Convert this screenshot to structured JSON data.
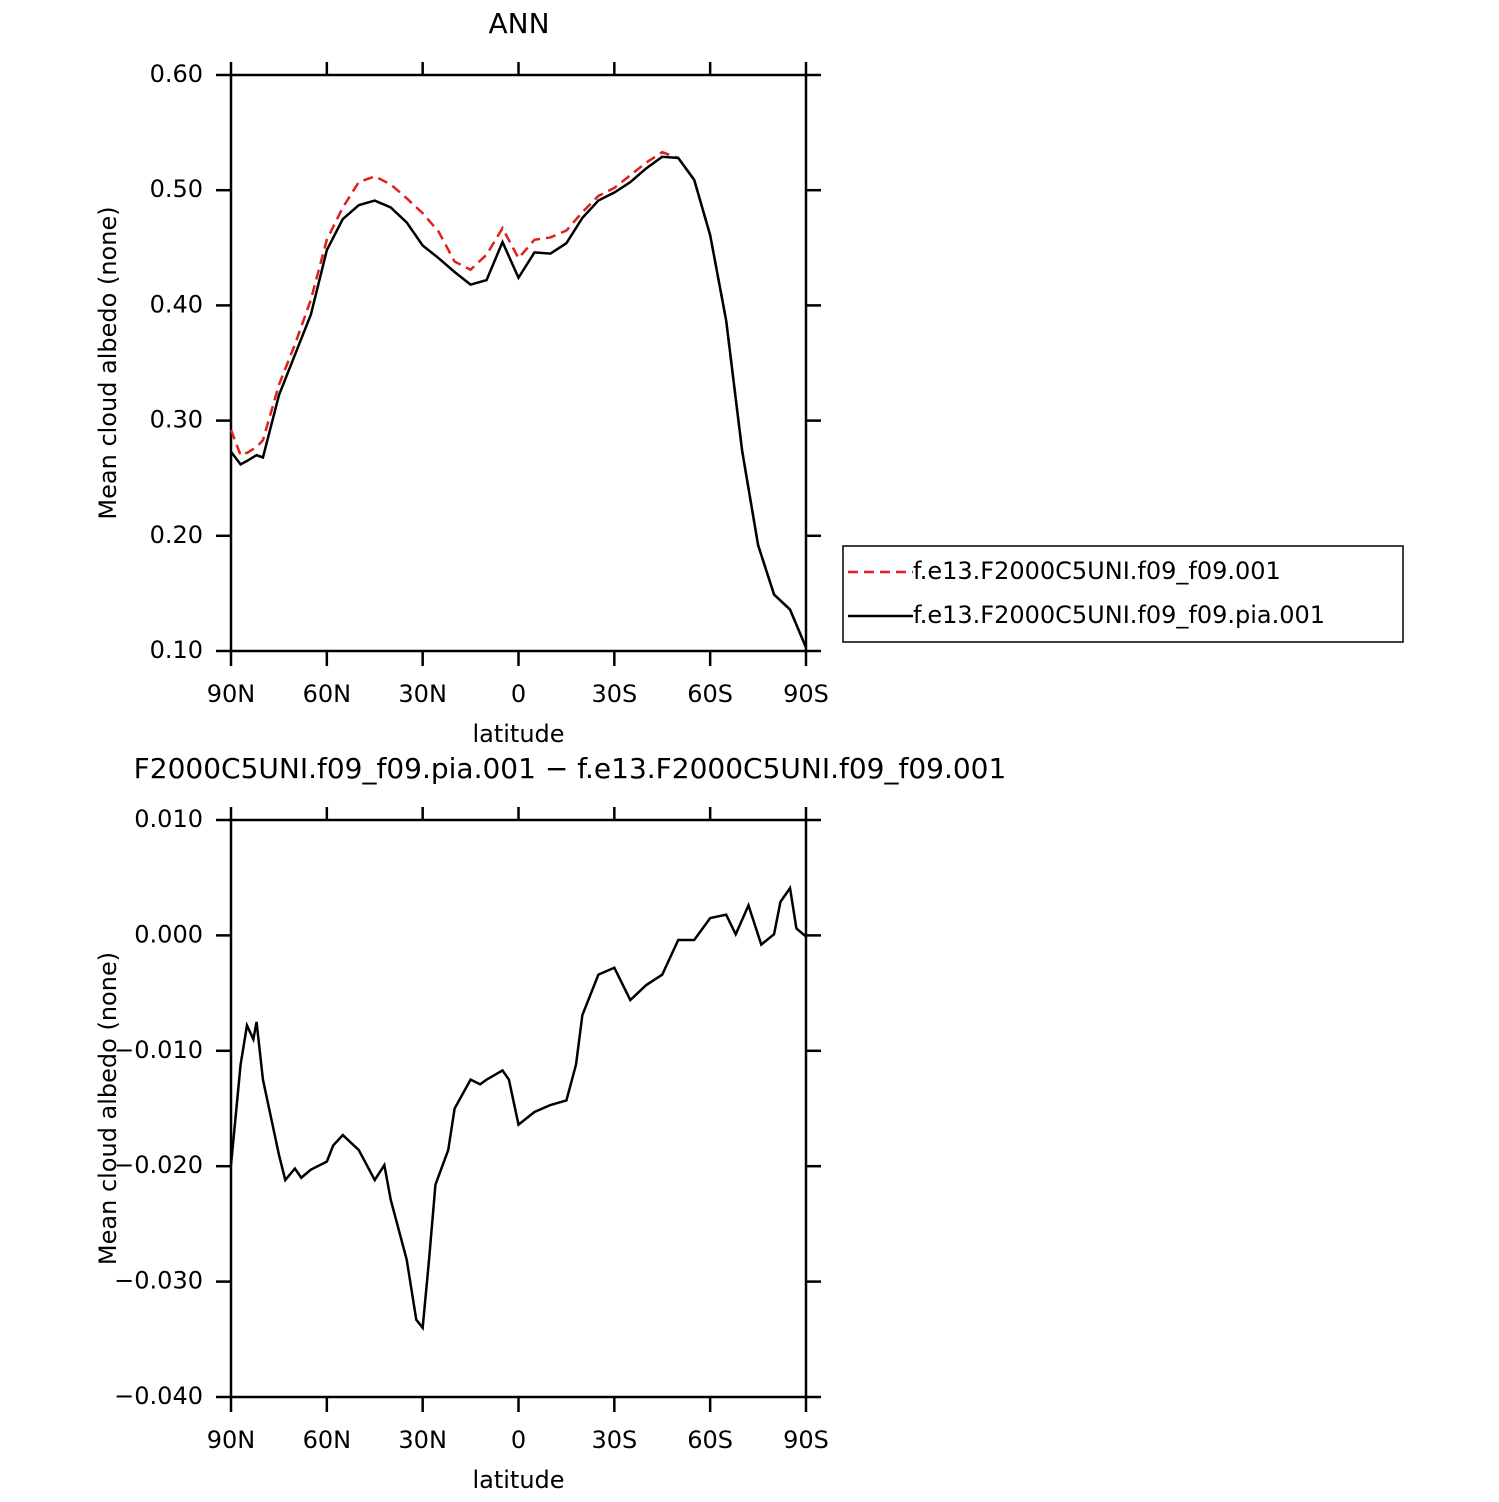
{
  "chart_data": [
    {
      "type": "line",
      "title": "ANN",
      "xlabel": "latitude",
      "ylabel": "Mean cloud albedo (none)",
      "x": [
        90,
        87,
        85,
        82,
        80,
        75,
        70,
        65,
        60,
        55,
        50,
        45,
        40,
        35,
        30,
        25,
        20,
        15,
        10,
        5,
        0,
        -5,
        -10,
        -15,
        -20,
        -25,
        -30,
        -35,
        -40,
        -45,
        -50,
        -55,
        -60,
        -65,
        -70,
        -75,
        -80,
        -85,
        -90
      ],
      "series": [
        {
          "name": "f.e13.F2000C5UNI.f09_f09.001",
          "color": "#e0201b",
          "style": "dashed",
          "values": [
            0.292,
            0.27,
            0.272,
            0.277,
            0.283,
            0.331,
            0.366,
            0.405,
            0.457,
            0.485,
            0.507,
            0.512,
            0.505,
            0.493,
            0.48,
            0.464,
            0.438,
            0.431,
            0.444,
            0.467,
            0.441,
            0.457,
            0.459,
            0.465,
            0.481,
            0.495,
            0.502,
            0.513,
            0.524,
            0.533,
            0.528,
            0.509,
            0.461,
            0.387,
            0.274,
            0.192,
            0.149,
            0.136,
            0.103
          ]
        },
        {
          "name": "f.e13.F2000C5UNI.f09_f09.pia.001",
          "color": "#000000",
          "style": "solid",
          "values": [
            0.273,
            0.262,
            0.265,
            0.27,
            0.268,
            0.322,
            0.357,
            0.392,
            0.448,
            0.475,
            0.487,
            0.491,
            0.485,
            0.472,
            0.452,
            0.441,
            0.429,
            0.418,
            0.422,
            0.455,
            0.424,
            0.446,
            0.445,
            0.454,
            0.476,
            0.491,
            0.498,
            0.507,
            0.519,
            0.529,
            0.528,
            0.509,
            0.461,
            0.387,
            0.274,
            0.192,
            0.149,
            0.136,
            0.103
          ]
        }
      ],
      "xlim": [
        90,
        -90
      ],
      "xticks": [
        {
          "value": 90,
          "label": "90N"
        },
        {
          "value": 60,
          "label": "60N"
        },
        {
          "value": 30,
          "label": "30N"
        },
        0,
        {
          "value": -30,
          "label": "30S"
        },
        {
          "value": -60,
          "label": "60S"
        },
        {
          "value": -90,
          "label": "90S"
        }
      ],
      "ylim": [
        0.1,
        0.6
      ],
      "yticks": [
        {
          "value": 0.1,
          "label": "0.10"
        },
        {
          "value": 0.2,
          "label": "0.20"
        },
        {
          "value": 0.3,
          "label": "0.30"
        },
        {
          "value": 0.4,
          "label": "0.40"
        },
        {
          "value": 0.5,
          "label": "0.50"
        },
        {
          "value": 0.6,
          "label": "0.60"
        }
      ],
      "legend": "right"
    },
    {
      "type": "line",
      "title": "F2000C5UNI.f09_f09.pia.001 − f.e13.F2000C5UNI.f09_f09.001",
      "xlabel": "latitude",
      "ylabel": "Mean cloud albedo (none)",
      "x": [
        90,
        87,
        85,
        83,
        82,
        80,
        78,
        75,
        73,
        70,
        68,
        65,
        60,
        58,
        55,
        50,
        45,
        42,
        40,
        35,
        32,
        30,
        28,
        26,
        22,
        20,
        15,
        12,
        10,
        5,
        3,
        0,
        -5,
        -10,
        -15,
        -18,
        -20,
        -25,
        -30,
        -35,
        -40,
        -45,
        -50,
        -55,
        -60,
        -65,
        -68,
        -72,
        -76,
        -80,
        -82,
        -85,
        -87,
        -90
      ],
      "values": [
        -0.0199,
        -0.0112,
        -0.0078,
        -0.009,
        -0.0075,
        -0.0125,
        -0.0151,
        -0.019,
        -0.0212,
        -0.0202,
        -0.021,
        -0.0203,
        -0.0196,
        -0.0182,
        -0.0173,
        -0.0186,
        -0.0212,
        -0.0199,
        -0.0229,
        -0.0281,
        -0.0333,
        -0.034,
        -0.0281,
        -0.0216,
        -0.0186,
        -0.015,
        -0.0125,
        -0.0129,
        -0.0125,
        -0.0117,
        -0.0125,
        -0.0164,
        -0.0153,
        -0.0147,
        -0.0143,
        -0.0112,
        -0.0069,
        -0.0034,
        -0.0028,
        -0.0056,
        -0.0043,
        -0.0034,
        -0.0004,
        -0.0004,
        0.0015,
        0.0018,
        0.0001,
        0.0026,
        -0.0008,
        0.0001,
        0.0029,
        0.0041,
        0.0006,
        -0.0001
      ],
      "color": "#000000",
      "xlim": [
        90,
        -90
      ],
      "xticks": [
        {
          "value": 90,
          "label": "90N"
        },
        {
          "value": 60,
          "label": "60N"
        },
        {
          "value": 30,
          "label": "30N"
        },
        0,
        {
          "value": -30,
          "label": "30S"
        },
        {
          "value": -60,
          "label": "60S"
        },
        {
          "value": -90,
          "label": "90S"
        }
      ],
      "ylim": [
        -0.04,
        0.01
      ],
      "yticks": [
        {
          "value": -0.04,
          "label": "−0.040"
        },
        {
          "value": -0.03,
          "label": "−0.030"
        },
        {
          "value": -0.02,
          "label": "−0.020"
        },
        {
          "value": -0.01,
          "label": "−0.010"
        },
        {
          "value": 0,
          "label": "0.000"
        },
        {
          "value": 0.01,
          "label": "0.010"
        }
      ]
    }
  ]
}
